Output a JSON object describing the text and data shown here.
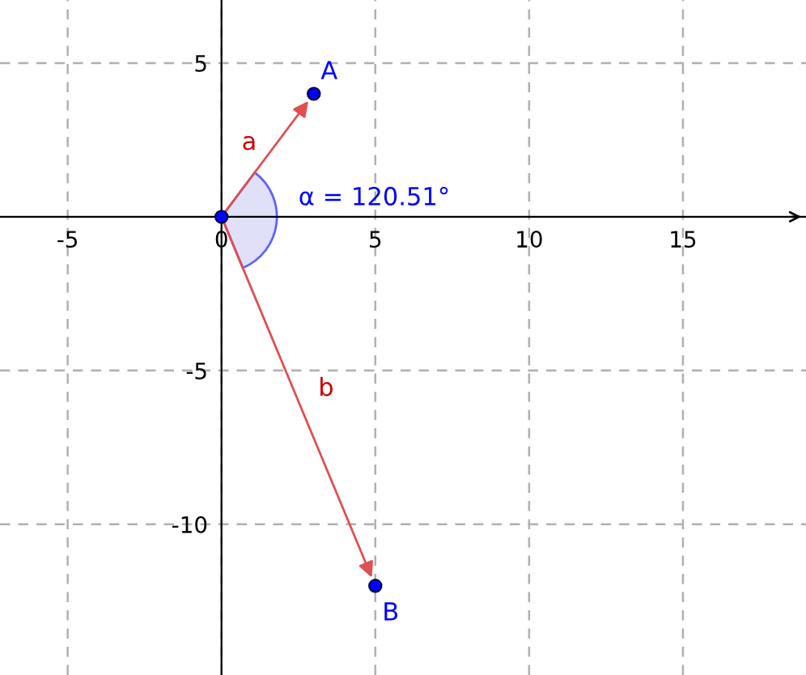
{
  "chart_data": {
    "type": "scatter",
    "series": [
      {
        "color": "#0000ff",
        "x": [
          0
        ],
        "values": [
          0
        ]
      },
      {
        "name": "A",
        "color": "#0000ff",
        "x": [
          3
        ],
        "values": [
          4
        ]
      },
      {
        "name": "B",
        "color": "#0000ff",
        "x": [
          5
        ],
        "values": [
          -12
        ]
      }
    ],
    "annotations": [
      "a",
      "b",
      "α = 120.51°"
    ],
    "xlim": [
      -7.2,
      19.0
    ],
    "ylim": [
      -14.9,
      7.05
    ],
    "xticks": [
      -5,
      0,
      5,
      10,
      15
    ],
    "yticks": [
      -10,
      -5,
      5
    ],
    "grid": true,
    "marker": "circle"
  }
}
